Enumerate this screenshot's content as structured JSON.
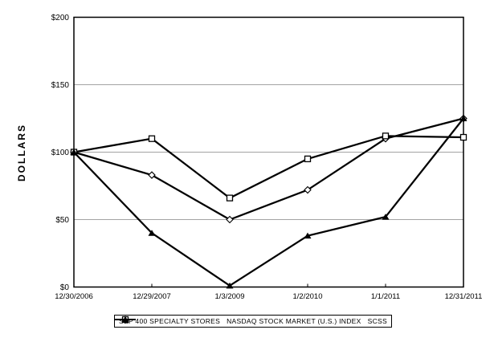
{
  "chart_data": {
    "type": "line",
    "title": "",
    "xlabel": "",
    "ylabel": "DOLLARS",
    "ylim": [
      0,
      200
    ],
    "grid": "horizontal",
    "gridline_values": [
      50,
      100,
      150
    ],
    "legend_position": "bottom-center",
    "x_categories": [
      "12/30/2006",
      "12/29/2007",
      "1/3/2009",
      "1/2/2010",
      "1/1/2011",
      "12/31/2011"
    ],
    "y_ticks": [
      {
        "label": "$0",
        "value": 0
      },
      {
        "label": "$50",
        "value": 50
      },
      {
        "label": "$100",
        "value": 100
      },
      {
        "label": "$150",
        "value": 150
      },
      {
        "label": "$200",
        "value": 200
      }
    ],
    "series": [
      {
        "name": "S&P 400 SPECIALTY STORES",
        "marker": "diamond-open",
        "values": [
          100,
          83,
          50,
          72,
          110,
          125
        ]
      },
      {
        "name": "NASDAQ STOCK MARKET (U.S.) INDEX",
        "marker": "square-open",
        "values": [
          100,
          110,
          66,
          95,
          112,
          111
        ]
      },
      {
        "name": "SCSS",
        "marker": "triangle-filled",
        "values": [
          100,
          40,
          1,
          38,
          52,
          125
        ]
      }
    ],
    "colors": {
      "line": "#000000",
      "grid": "#a3a3a3",
      "frame": "#000000",
      "text": "#000000",
      "marker_fill_open": "#ffffff",
      "background": "#ffffff"
    }
  }
}
